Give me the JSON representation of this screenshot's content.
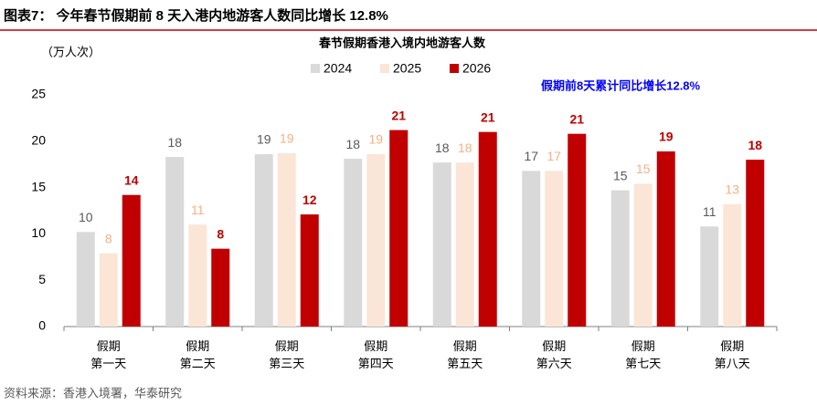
{
  "chart_data": {
    "type": "bar",
    "figure_label": "图表7： 今年春节假期前 8 天入港内地游客人数同比增长 12.8%",
    "title": "春节假期香港入境内地游客人数",
    "y_label": "（万人次）",
    "annotation": "假期前8天累计同比增长12.8%",
    "source": "资料来源：香港入境署，华泰研究",
    "categories": [
      "假期\n第一天",
      "假期\n第二天",
      "假期\n第三天",
      "假期\n第四天",
      "假期\n第五天",
      "假期\n第六天",
      "假期\n第七天",
      "假期\n第八天"
    ],
    "series": [
      {
        "name": "2024",
        "color": "#d9d9d9",
        "label_color": "#595959",
        "values": [
          10.2,
          18.3,
          18.6,
          18.1,
          17.7,
          16.8,
          14.7,
          10.8
        ],
        "value_labels": [
          "10",
          "18",
          "19",
          "18",
          "18",
          "17",
          "15",
          "11"
        ]
      },
      {
        "name": "2025",
        "color": "#fbe5d6",
        "label_color": "#f4b183",
        "values": [
          7.9,
          11.0,
          18.7,
          18.6,
          17.7,
          16.8,
          15.4,
          13.2
        ],
        "value_labels": [
          "8",
          "11",
          "19",
          "19",
          "18",
          "17",
          "15",
          "13"
        ]
      },
      {
        "name": "2026",
        "color": "#c00000",
        "label_color": "#c00000",
        "values": [
          14.2,
          8.4,
          12.1,
          21.2,
          21.0,
          20.8,
          18.9,
          18.0
        ],
        "value_labels": [
          "14",
          "8",
          "12",
          "21",
          "21",
          "21",
          "19",
          "18"
        ]
      }
    ],
    "ylim": [
      0,
      25
    ],
    "yticks": [
      0,
      5,
      10,
      15,
      20,
      25
    ],
    "grid": false
  }
}
